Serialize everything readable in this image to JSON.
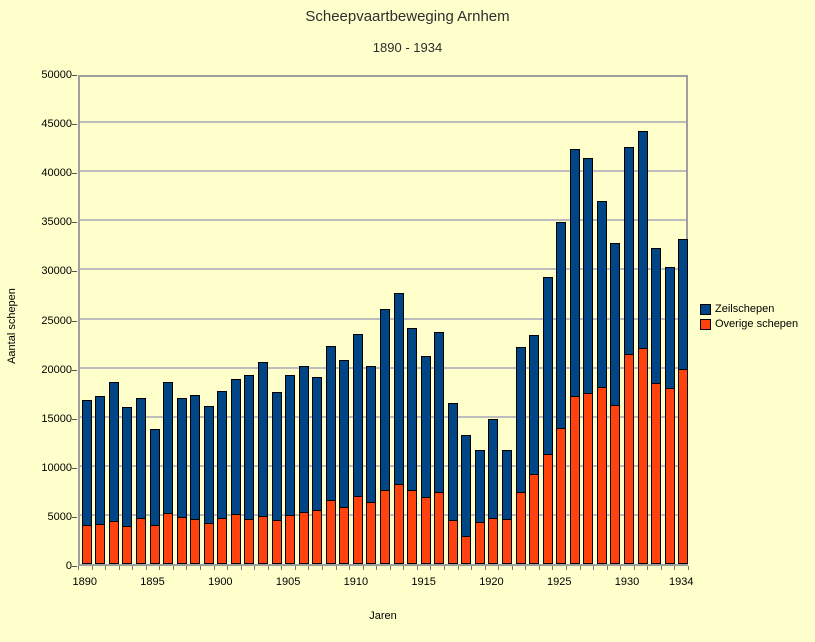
{
  "page": {
    "background_color": "#FFFFCC"
  },
  "chart_data": {
    "type": "bar",
    "stacked": true,
    "title": "Scheepvaartbeweging Arnhem",
    "subtitle": "1890 - 1934",
    "xlabel": "Jaren",
    "ylabel": "Aantal schepen",
    "ylim": [
      0,
      50000
    ],
    "ytick_step": 5000,
    "grid": true,
    "legend_position": "right",
    "categories": [
      1890,
      1891,
      1892,
      1893,
      1894,
      1895,
      1896,
      1897,
      1898,
      1899,
      1900,
      1901,
      1902,
      1903,
      1904,
      1905,
      1906,
      1907,
      1908,
      1909,
      1910,
      1911,
      1912,
      1913,
      1914,
      1915,
      1916,
      1917,
      1918,
      1919,
      1920,
      1921,
      1922,
      1923,
      1924,
      1925,
      1926,
      1927,
      1928,
      1929,
      1930,
      1931,
      1932,
      1933,
      1934
    ],
    "xtick_labels": [
      "1890",
      "1895",
      "1900",
      "1905",
      "1910",
      "1915",
      "1920",
      "1925",
      "1930",
      "1934"
    ],
    "xtick_label_indices": [
      0,
      5,
      10,
      15,
      20,
      25,
      30,
      35,
      40,
      44
    ],
    "stack_order_bottom_to_top": [
      "Overige schepen",
      "Zeilschepen"
    ],
    "series": [
      {
        "name": "Zeilschepen",
        "color": "#004586",
        "values": [
          12800,
          13100,
          14200,
          12200,
          12300,
          9900,
          13400,
          12200,
          12700,
          12000,
          13000,
          13800,
          14700,
          15800,
          13100,
          14300,
          15000,
          13600,
          15800,
          15100,
          16600,
          14000,
          18600,
          19600,
          16600,
          14500,
          16400,
          12000,
          10300,
          7400,
          10200,
          7100,
          14900,
          14200,
          18100,
          21000,
          25300,
          24000,
          19100,
          16600,
          21200,
          22200,
          13900,
          12400,
          13300
        ]
      },
      {
        "name": "Overige schepen",
        "color": "#FF420E",
        "values": [
          4000,
          4100,
          4400,
          3900,
          4700,
          4000,
          5200,
          4800,
          4600,
          4200,
          4700,
          5100,
          4600,
          4900,
          4500,
          5000,
          5300,
          5500,
          6500,
          5800,
          6900,
          6300,
          7500,
          8100,
          7500,
          6800,
          7300,
          4500,
          2900,
          4300,
          4700,
          4600,
          7300,
          9200,
          11200,
          13900,
          17100,
          17400,
          18000,
          16200,
          21400,
          22000,
          18400,
          17900,
          19900
        ]
      },
      {
        "name_totals_note": "totals",
        "name": "_totals",
        "color": "",
        "values": [
          16800,
          17200,
          18600,
          16100,
          17000,
          13900,
          18600,
          17000,
          17300,
          16200,
          17700,
          18900,
          19300,
          20700,
          17600,
          19300,
          20300,
          19100,
          22300,
          20900,
          23500,
          20300,
          26100,
          27700,
          24100,
          21300,
          23700,
          16500,
          13200,
          11700,
          14900,
          11700,
          22200,
          23400,
          29300,
          34900,
          42400,
          41400,
          37100,
          32800,
          42600,
          44200,
          32300,
          30300,
          33200
        ]
      }
    ]
  }
}
